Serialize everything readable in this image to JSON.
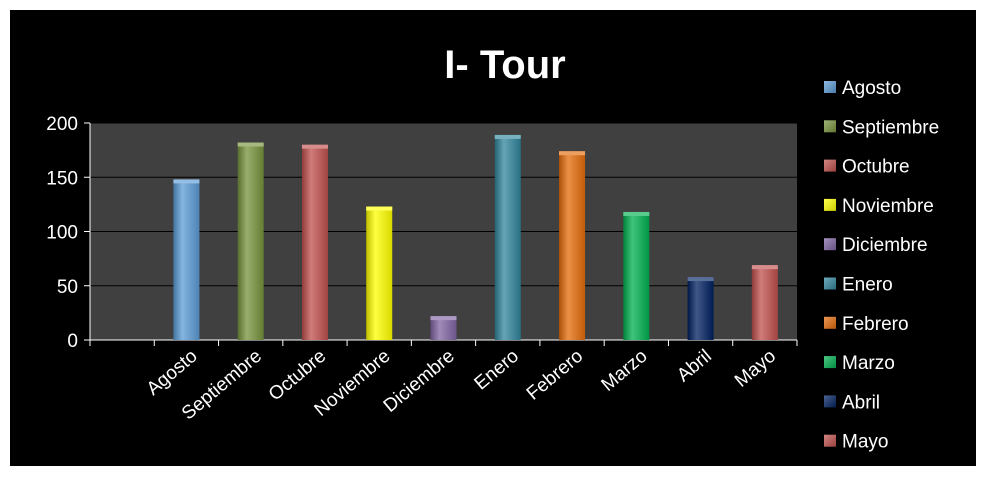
{
  "chart_data": {
    "type": "bar",
    "title": "I- Tour",
    "categories": [
      "Agosto",
      "Septiembre",
      "Octubre",
      "Noviembre",
      "Diciembre",
      "Enero",
      "Febrero",
      "Marzo",
      "Abril",
      "Mayo"
    ],
    "series": [
      {
        "name": "Agosto",
        "category": "Agosto",
        "value": 148,
        "color": "#5b9bd5"
      },
      {
        "name": "Septiembre",
        "category": "Septiembre",
        "value": 182,
        "color": "#77933c"
      },
      {
        "name": "Octubre",
        "category": "Octubre",
        "value": 180,
        "color": "#c0504d"
      },
      {
        "name": "Noviembre",
        "category": "Noviembre",
        "value": 123,
        "color": "#ffff00"
      },
      {
        "name": "Diciembre",
        "category": "Diciembre",
        "value": 22,
        "color": "#8064a2"
      },
      {
        "name": "Enero",
        "category": "Enero",
        "value": 189,
        "color": "#31859c"
      },
      {
        "name": "Febrero",
        "category": "Febrero",
        "value": 174,
        "color": "#e46c0a"
      },
      {
        "name": "Marzo",
        "category": "Marzo",
        "value": 118,
        "color": "#00b050"
      },
      {
        "name": "Abril",
        "category": "Abril",
        "value": 58,
        "color": "#002060"
      },
      {
        "name": "Mayo",
        "category": "Mayo",
        "value": 69,
        "color": "#c0504d"
      }
    ],
    "ylim": [
      0,
      200
    ],
    "yticks": [
      0,
      50,
      100,
      150,
      200
    ],
    "xlabel": "",
    "ylabel": "",
    "grid": true,
    "legend_position": "right",
    "colors": {
      "background": "#000000",
      "plot_area": "#404040",
      "gridline": "#000000",
      "text": "#ffffff"
    }
  }
}
